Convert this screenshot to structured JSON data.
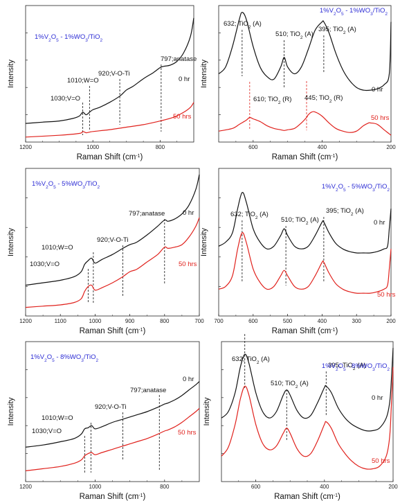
{
  "colors": {
    "black_series": "#111111",
    "red_series": "#e0201b",
    "title": "#2b2bd4",
    "axes": "#222222"
  },
  "chart_data": [
    {
      "type": "line",
      "panel": "top-left",
      "title": "1%V2O5 - 1%WO3/TiO2",
      "title_position": "top-left",
      "xlabel": "Raman Shift (cm-1)",
      "ylabel": "Intensity",
      "xlim": [
        1200,
        700
      ],
      "x_reversed": true,
      "xticks": [
        1200,
        1000,
        800
      ],
      "yticks_labeled": false,
      "series": [
        {
          "name": "0 hr",
          "color": "#111111",
          "x": [
            1200,
            1150,
            1100,
            1060,
            1040,
            1030,
            1020,
            1010,
            1000,
            980,
            950,
            920,
            900,
            880,
            850,
            820,
            800,
            790,
            770,
            750,
            730,
            710,
            700
          ],
          "y": [
            0.05,
            0.06,
            0.07,
            0.09,
            0.11,
            0.14,
            0.12,
            0.14,
            0.16,
            0.18,
            0.22,
            0.27,
            0.32,
            0.35,
            0.41,
            0.46,
            0.5,
            0.51,
            0.52,
            0.55,
            0.62,
            0.75,
            0.9
          ]
        },
        {
          "name": "50 hrs",
          "color": "#e0201b",
          "x": [
            1200,
            1100,
            1040,
            1030,
            1020,
            1010,
            1000,
            950,
            900,
            850,
            800,
            760,
            730,
            710,
            700
          ],
          "y": [
            -0.06,
            -0.045,
            -0.03,
            -0.015,
            -0.025,
            -0.02,
            -0.015,
            0.0,
            0.02,
            0.04,
            0.07,
            0.1,
            0.14,
            0.18,
            0.22
          ]
        }
      ],
      "annotations": [
        {
          "text": "1030;V=O",
          "x": 1030
        },
        {
          "text": "1010;W=O",
          "x": 1010
        },
        {
          "text": "920;V-O-Ti",
          "x": 920
        },
        {
          "text": "797;anatase",
          "x": 797
        }
      ]
    },
    {
      "type": "line",
      "panel": "top-right",
      "title": "1%V2O5 - 1%WO3/TiO2",
      "title_position": "top-right",
      "xlabel": "Raman Shift (cm-1)",
      "ylabel": "Intensity",
      "xlim": [
        700,
        200
      ],
      "x_reversed": true,
      "xticks": [
        600,
        400,
        200
      ],
      "yticks_labeled": false,
      "series": [
        {
          "name": "0 hr",
          "color": "#111111",
          "x": [
            700,
            680,
            660,
            640,
            632,
            620,
            600,
            580,
            560,
            540,
            520,
            510,
            500,
            480,
            460,
            440,
            420,
            400,
            395,
            380,
            360,
            340,
            320,
            300,
            280,
            260,
            240,
            220,
            205,
            200
          ],
          "y": [
            0.5,
            0.55,
            0.7,
            0.9,
            0.95,
            0.9,
            0.7,
            0.55,
            0.48,
            0.46,
            0.55,
            0.62,
            0.55,
            0.5,
            0.55,
            0.68,
            0.82,
            0.88,
            0.88,
            0.8,
            0.65,
            0.53,
            0.45,
            0.4,
            0.38,
            0.38,
            0.39,
            0.42,
            0.5,
            0.88
          ]
        },
        {
          "name": "50 hrs",
          "color": "#e0201b",
          "x": [
            700,
            660,
            640,
            620,
            610,
            600,
            580,
            560,
            540,
            520,
            510,
            500,
            480,
            460,
            445,
            440,
            430,
            420,
            400,
            380,
            360,
            340,
            320,
            300,
            280,
            265,
            260,
            240,
            220,
            205,
            200
          ],
          "y": [
            0.08,
            0.1,
            0.13,
            0.16,
            0.18,
            0.17,
            0.15,
            0.12,
            0.1,
            0.09,
            0.085,
            0.09,
            0.1,
            0.14,
            0.18,
            0.2,
            0.22,
            0.22,
            0.19,
            0.14,
            0.1,
            0.08,
            0.07,
            0.08,
            0.12,
            0.14,
            0.14,
            0.13,
            0.09,
            0.06,
            0.05
          ]
        }
      ],
      "annotations": [
        {
          "text": "632; TiO2 (A)",
          "x": 632,
          "color": "#111111"
        },
        {
          "text": "510; TiO2 (A)",
          "x": 510,
          "color": "#111111"
        },
        {
          "text": "395; TiO2 (A)",
          "x": 395,
          "color": "#111111"
        },
        {
          "text": "610; TiO2 (R)",
          "x": 610,
          "color": "#e0201b"
        },
        {
          "text": "445; TiO2 (R)",
          "x": 445,
          "color": "#e0201b"
        }
      ]
    },
    {
      "type": "line",
      "panel": "middle-left",
      "title": "1%V2O5 - 5%WO3/TiO2",
      "title_position": "top-left",
      "xlabel": "Raman Shift (cm-1)",
      "ylabel": "Intensity",
      "xlim": [
        1200,
        700
      ],
      "x_reversed": true,
      "xticks": [
        1200,
        1100,
        1000,
        900,
        800,
        700
      ],
      "yticks_labeled": false,
      "series": [
        {
          "name": "0 hr",
          "color": "#111111",
          "x": [
            1200,
            1150,
            1100,
            1060,
            1040,
            1030,
            1020,
            1010,
            1000,
            980,
            950,
            920,
            900,
            880,
            850,
            820,
            800,
            790,
            770,
            750,
            730,
            710,
            700
          ],
          "y": [
            0.25,
            0.27,
            0.29,
            0.32,
            0.36,
            0.42,
            0.45,
            0.47,
            0.43,
            0.46,
            0.5,
            0.55,
            0.58,
            0.6,
            0.66,
            0.73,
            0.78,
            0.77,
            0.79,
            0.83,
            0.9,
            1.03,
            1.15
          ]
        },
        {
          "name": "50 hrs",
          "color": "#e0201b",
          "x": [
            1200,
            1150,
            1100,
            1060,
            1040,
            1030,
            1020,
            1010,
            1000,
            980,
            950,
            920,
            900,
            880,
            850,
            820,
            800,
            790,
            770,
            750,
            730,
            710,
            700
          ],
          "y": [
            0.07,
            0.08,
            0.09,
            0.11,
            0.14,
            0.2,
            0.24,
            0.25,
            0.21,
            0.23,
            0.27,
            0.32,
            0.36,
            0.38,
            0.44,
            0.5,
            0.56,
            0.55,
            0.56,
            0.58,
            0.64,
            0.73,
            0.8
          ]
        }
      ],
      "annotations": [
        {
          "text": "1030;V=O",
          "x": 1020
        },
        {
          "text": "1010;W=O",
          "x": 1005
        },
        {
          "text": "920;V-O-Ti",
          "x": 920
        },
        {
          "text": "797;anatase",
          "x": 800
        }
      ]
    },
    {
      "type": "line",
      "panel": "middle-right",
      "title": "1%V2O5 - 5%WO3/TiO2",
      "title_position": "top-right",
      "xlabel": "Raman Shift (cm-1)",
      "ylabel": "Intensity",
      "xlim": [
        700,
        200
      ],
      "x_reversed": true,
      "xticks": [
        700,
        600,
        500,
        400,
        300,
        200
      ],
      "yticks_labeled": false,
      "series": [
        {
          "name": "0 hr",
          "color": "#111111",
          "x": [
            700,
            680,
            660,
            645,
            632,
            620,
            600,
            580,
            560,
            540,
            520,
            510,
            500,
            480,
            460,
            440,
            420,
            400,
            395,
            380,
            360,
            340,
            320,
            300,
            280,
            260,
            240,
            220,
            210,
            205,
            200
          ],
          "y": [
            0.52,
            0.55,
            0.62,
            0.8,
            0.92,
            0.85,
            0.65,
            0.55,
            0.5,
            0.52,
            0.6,
            0.65,
            0.6,
            0.52,
            0.5,
            0.52,
            0.6,
            0.7,
            0.7,
            0.62,
            0.54,
            0.5,
            0.48,
            0.47,
            0.47,
            0.47,
            0.48,
            0.5,
            0.52,
            0.65,
            0.8
          ]
        },
        {
          "name": "50 hrs",
          "color": "#e0201b",
          "x": [
            700,
            680,
            660,
            645,
            632,
            620,
            600,
            580,
            560,
            540,
            520,
            510,
            500,
            480,
            460,
            440,
            420,
            400,
            395,
            380,
            360,
            340,
            320,
            300,
            280,
            260,
            240,
            220,
            210,
            205,
            200
          ],
          "y": [
            0.2,
            0.22,
            0.3,
            0.5,
            0.62,
            0.55,
            0.35,
            0.25,
            0.2,
            0.22,
            0.3,
            0.34,
            0.3,
            0.22,
            0.2,
            0.22,
            0.3,
            0.4,
            0.4,
            0.32,
            0.24,
            0.2,
            0.18,
            0.17,
            0.17,
            0.17,
            0.18,
            0.2,
            0.23,
            0.35,
            0.5
          ]
        }
      ],
      "annotations": [
        {
          "text": "632; TiO2 (A)",
          "x": 632
        },
        {
          "text": "510; TiO2 (A)",
          "x": 505
        },
        {
          "text": "395; TiO2 (A)",
          "x": 395
        }
      ]
    },
    {
      "type": "line",
      "panel": "bottom-left",
      "title": "1%V2O5 - 8%WO3/TiO2",
      "title_position": "top-left",
      "xlabel": "Raman Shift (cm-1)",
      "ylabel": "Intensity",
      "xlim": [
        1200,
        700
      ],
      "x_reversed": true,
      "xticks": [
        1200,
        1000,
        800
      ],
      "yticks_labeled": false,
      "series": [
        {
          "name": "0 hr",
          "color": "#111111",
          "x": [
            1200,
            1150,
            1100,
            1060,
            1040,
            1030,
            1020,
            1010,
            1000,
            980,
            950,
            920,
            900,
            880,
            850,
            820,
            800,
            790,
            770,
            750,
            730,
            710,
            700
          ],
          "y": [
            0.22,
            0.24,
            0.27,
            0.3,
            0.34,
            0.39,
            0.4,
            0.42,
            0.39,
            0.41,
            0.45,
            0.48,
            0.5,
            0.52,
            0.55,
            0.59,
            0.62,
            0.63,
            0.66,
            0.7,
            0.75,
            0.8,
            0.83
          ]
        },
        {
          "name": "50 hrs",
          "color": "#e0201b",
          "x": [
            1200,
            1150,
            1100,
            1060,
            1040,
            1030,
            1020,
            1010,
            1000,
            980,
            950,
            920,
            900,
            880,
            850,
            820,
            800,
            790,
            770,
            750,
            730,
            710,
            700
          ],
          "y": [
            0.0,
            0.02,
            0.04,
            0.07,
            0.1,
            0.14,
            0.16,
            0.17,
            0.15,
            0.17,
            0.2,
            0.23,
            0.25,
            0.27,
            0.3,
            0.34,
            0.37,
            0.38,
            0.41,
            0.45,
            0.5,
            0.55,
            0.58
          ]
        }
      ],
      "annotations": [
        {
          "text": "1030;V=O",
          "x": 1030
        },
        {
          "text": "1010;W=O",
          "x": 1012
        },
        {
          "text": "920;V-O-Ti",
          "x": 920
        },
        {
          "text": "797;anatase",
          "x": 815
        }
      ]
    },
    {
      "type": "line",
      "panel": "bottom-right",
      "title": "1%V2O5 - 8%WO3/TiO2",
      "title_position": "top-right",
      "xlabel": "Raman Shift (cm-1)",
      "ylabel": "Intensity",
      "xlim": [
        700,
        200
      ],
      "x_reversed": true,
      "xticks": [
        600,
        400,
        200
      ],
      "yticks_labeled": false,
      "series": [
        {
          "name": "0 hr",
          "color": "#111111",
          "x": [
            700,
            680,
            660,
            645,
            632,
            620,
            600,
            580,
            560,
            540,
            520,
            510,
            500,
            480,
            460,
            440,
            420,
            400,
            395,
            380,
            360,
            340,
            320,
            300,
            280,
            260,
            240,
            220,
            210,
            205,
            200
          ],
          "y": [
            0.5,
            0.55,
            0.7,
            0.9,
            1.0,
            0.93,
            0.7,
            0.55,
            0.5,
            0.55,
            0.68,
            0.72,
            0.68,
            0.56,
            0.5,
            0.52,
            0.62,
            0.74,
            0.75,
            0.7,
            0.58,
            0.5,
            0.45,
            0.42,
            0.4,
            0.4,
            0.42,
            0.5,
            0.62,
            0.8,
            1.05
          ]
        },
        {
          "name": "50 hrs",
          "color": "#e0201b",
          "x": [
            700,
            680,
            660,
            645,
            632,
            620,
            600,
            580,
            560,
            540,
            520,
            510,
            500,
            480,
            460,
            440,
            420,
            400,
            395,
            380,
            360,
            340,
            320,
            300,
            280,
            260,
            240,
            220,
            210,
            205,
            200
          ],
          "y": [
            0.2,
            0.27,
            0.45,
            0.65,
            0.75,
            0.68,
            0.45,
            0.3,
            0.25,
            0.28,
            0.38,
            0.42,
            0.38,
            0.26,
            0.2,
            0.22,
            0.32,
            0.45,
            0.47,
            0.42,
            0.3,
            0.22,
            0.16,
            0.12,
            0.1,
            0.1,
            0.12,
            0.2,
            0.35,
            0.6,
            0.9
          ]
        }
      ],
      "annotations": [
        {
          "text": "632; TiO2 (A)",
          "x": 632
        },
        {
          "text": "510; TiO2 (A)",
          "x": 510
        },
        {
          "text": "395; TiO2 (A)",
          "x": 395
        }
      ]
    }
  ]
}
